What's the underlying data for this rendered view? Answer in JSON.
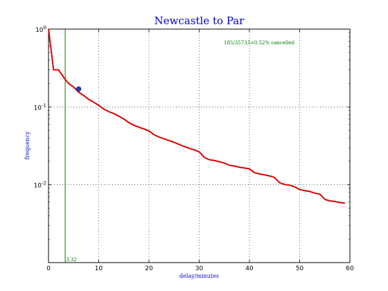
{
  "chart_data": {
    "type": "line",
    "title": "Newcastle to Par",
    "xlabel": "delay/minutes",
    "ylabel": "frequency",
    "xlim": [
      0,
      60
    ],
    "ylim": [
      0.001,
      1
    ],
    "yscale": "log",
    "grid": true,
    "x_ticks": [
      0,
      10,
      20,
      30,
      40,
      50,
      60
    ],
    "x_tick_labels": [
      "0",
      "10",
      "20",
      "30",
      "40",
      "50",
      "60"
    ],
    "y_ticks": [
      0.01,
      0.1,
      1
    ],
    "y_tick_labels": [
      {
        "base": "10",
        "exp": "-2"
      },
      {
        "base": "10",
        "exp": "-1"
      },
      {
        "base": "10",
        "exp": "0"
      }
    ],
    "annotation_text": "185/35733=0.52% cancelled",
    "vline": {
      "x": 3.32,
      "label": "3.32"
    },
    "marker": {
      "x": 6,
      "y": 0.17
    },
    "colors": {
      "series": "#dd0000",
      "vline": "#007700",
      "marker": "#1f3fbf",
      "labels": "#0000cc",
      "annotation": "#007700"
    },
    "series": [
      {
        "x": [
          0,
          1,
          2,
          3,
          4,
          5,
          6,
          7,
          8,
          9,
          10,
          11,
          12,
          13,
          14,
          15,
          16,
          17,
          18,
          19,
          20,
          21,
          22,
          23,
          24,
          25,
          26,
          27,
          28,
          29,
          30,
          31,
          32,
          33,
          34,
          35,
          36,
          37,
          38,
          39,
          40,
          41,
          42,
          43,
          44,
          45,
          46,
          47,
          48,
          49,
          50,
          51,
          52,
          53,
          54,
          55,
          56,
          57,
          58,
          59
        ],
        "y": [
          1.0,
          0.3,
          0.3,
          0.24,
          0.2,
          0.18,
          0.155,
          0.14,
          0.125,
          0.115,
          0.105,
          0.094,
          0.087,
          0.082,
          0.076,
          0.07,
          0.063,
          0.058,
          0.055,
          0.052,
          0.049,
          0.044,
          0.041,
          0.039,
          0.037,
          0.035,
          0.033,
          0.031,
          0.0295,
          0.028,
          0.0265,
          0.0225,
          0.021,
          0.0205,
          0.0198,
          0.019,
          0.0178,
          0.0174,
          0.0168,
          0.0164,
          0.016,
          0.0143,
          0.0138,
          0.0134,
          0.013,
          0.0124,
          0.0106,
          0.0101,
          0.0099,
          0.0094,
          0.0087,
          0.0084,
          0.0082,
          0.0078,
          0.0076,
          0.0065,
          0.0062,
          0.0061,
          0.0059,
          0.0058
        ]
      }
    ]
  }
}
